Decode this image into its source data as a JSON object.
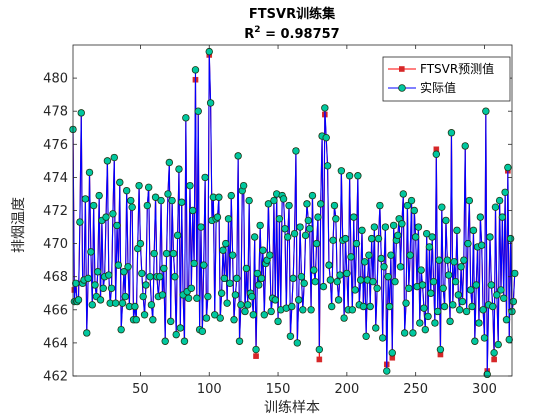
{
  "chart_data": {
    "type": "line",
    "title": "FTSVR训练集",
    "subtitle_prefix": "R",
    "subtitle_sup": "2",
    "subtitle_value": " = 0.98757",
    "xlabel": "训练样本",
    "ylabel": "排烟温度",
    "xlim": [
      1,
      320
    ],
    "ylim": [
      462,
      482
    ],
    "xticks": [
      50,
      100,
      150,
      200,
      250,
      300
    ],
    "yticks": [
      462,
      464,
      466,
      468,
      470,
      472,
      474,
      476,
      478,
      480
    ],
    "grid": false,
    "legend_position": "top-right",
    "series": [
      {
        "name": "FTSVR预测值",
        "color": "#ff0000",
        "marker": "square",
        "marker_fill": "#d62728",
        "values": [
          476.9,
          467.2,
          467.6,
          466.5,
          466.6,
          471.3,
          477.9,
          467.6,
          467.8,
          472.7,
          464.6,
          467.9,
          474.3,
          469.5,
          466.3,
          472.3,
          467.5,
          466.8,
          468.3,
          472.9,
          466.6,
          471.4,
          467.3,
          468.0,
          471.6,
          475.0,
          468.1,
          466.4,
          467.3,
          471.8,
          475.2,
          466.4,
          471.1,
          468.7,
          473.7,
          464.8,
          466.4,
          468.3,
          466.8,
          473.2,
          468.6,
          466.2,
          472.6,
          472.2,
          465.4,
          466.2,
          465.4,
          469.7,
          473.5,
          470.0,
          468.2,
          466.8,
          465.7,
          467.5,
          472.3,
          473.4,
          468.0,
          466.3,
          465.4,
          469.4,
          472.8,
          468.0,
          466.8,
          468.0,
          472.6,
          466.9,
          468.5,
          464.1,
          469.4,
          473.0,
          474.9,
          465.3,
          472.6,
          469.4,
          468.0,
          464.5,
          470.5,
          474.5,
          464.9,
          472.5,
          466.9,
          464.1,
          477.6,
          467.1,
          466.7,
          473.5,
          467.3,
          472.0,
          468.8,
          479.9,
          466.7,
          478.0,
          464.8,
          471.0,
          464.7,
          468.7,
          474.0,
          465.5,
          466.8,
          481.4,
          478.5,
          471.4,
          472.8,
          465.7,
          471.5,
          471.6,
          472.8,
          465.5,
          467.0,
          469.6,
          467.9,
          470.0,
          466.4,
          471.5,
          467.6,
          472.9,
          469.3,
          465.4,
          466.9,
          467.9,
          475.3,
          464.1,
          466.3,
          473.2,
          473.5,
          465.9,
          468.5,
          466.3,
          472.6,
          467.0,
          466.8,
          465.7,
          470.4,
          463.2,
          468.2,
          467.5,
          471.1,
          467.9,
          469.6,
          465.7,
          468.8,
          469.0,
          472.4,
          469.3,
          465.9,
          466.7,
          472.6,
          466.6,
          473.0,
          465.3,
          471.5,
          466.0,
          472.9,
          472.7,
          470.9,
          466.1,
          470.4,
          472.3,
          464.4,
          466.2,
          467.9,
          470.6,
          475.6,
          464.0,
          466.6,
          471.0,
          468.0,
          466.0,
          467.6,
          470.5,
          472.4,
          471.4,
          470.9,
          466.0,
          472.9,
          468.4,
          467.7,
          470.0,
          471.6,
          463.0,
          472.4,
          476.5,
          467.4,
          477.8,
          476.4,
          474.7,
          468.7,
          467.8,
          466.2,
          470.2,
          472.3,
          471.5,
          467.7,
          466.6,
          468.1,
          474.4,
          470.2,
          465.5,
          470.3,
          468.2,
          466.0,
          474.1,
          469.2,
          466.0,
          471.6,
          467.2,
          470.0,
          474.1,
          466.3,
          467.8,
          470.8,
          466.2,
          468.9,
          464.4,
          467.8,
          469.3,
          466.2,
          470.3,
          467.7,
          471.0,
          464.9,
          467.3,
          470.3,
          472.3,
          469.1,
          464.3,
          468.6,
          471.0,
          462.7,
          468.0,
          466.2,
          469.3,
          463.1,
          471.1,
          467.7,
          470.2,
          470.5,
          471.5,
          468.6,
          471.2,
          473.0,
          464.6,
          466.4,
          472.3,
          467.3,
          469.3,
          472.6,
          464.6,
          472.0,
          470.4,
          467.4,
          471.0,
          465.2,
          468.4,
          467.5,
          466.1,
          464.8,
          470.6,
          465.6,
          469.8,
          467.0,
          470.4,
          467.7,
          465.2,
          475.7,
          465.9,
          469.0,
          463.3,
          472.2,
          467.3,
          466.2,
          471.4,
          469.0,
          468.1,
          465.3,
          476.7,
          466.3,
          468.9,
          467.7,
          470.8,
          466.9,
          466.0,
          468.6,
          466.5,
          469.0,
          475.9,
          465.9,
          470.0,
          472.6,
          467.2,
          466.2,
          470.8,
          464.1,
          467.5,
          469.8,
          465.2,
          471.6,
          469.9,
          466.0,
          464.3,
          478.0,
          462.3,
          466.3,
          470.4,
          467.5,
          466.2,
          463.0,
          472.2,
          466.9,
          463.9,
          472.6,
          467.2,
          471.6,
          466.7,
          473.1,
          465.4,
          474.4,
          464.2,
          470.3,
          465.9,
          466.5,
          468.2
        ]
      },
      {
        "name": "实际值",
        "color": "#0000ff",
        "marker": "circle",
        "marker_fill": "#00c8a0",
        "values": [
          476.9,
          466.5,
          467.6,
          466.5,
          466.6,
          471.3,
          477.9,
          467.6,
          467.8,
          472.7,
          464.6,
          467.9,
          474.3,
          469.5,
          466.3,
          472.3,
          467.5,
          466.8,
          468.3,
          472.9,
          466.6,
          471.4,
          467.3,
          468.0,
          471.6,
          475.0,
          468.1,
          466.4,
          467.3,
          471.8,
          475.2,
          466.4,
          471.1,
          468.7,
          473.7,
          464.8,
          466.4,
          468.3,
          466.8,
          473.2,
          468.6,
          466.2,
          472.6,
          472.2,
          465.4,
          466.2,
          465.4,
          469.7,
          473.5,
          470.0,
          468.2,
          466.8,
          465.7,
          467.5,
          472.3,
          473.4,
          468.0,
          466.3,
          465.4,
          469.4,
          472.8,
          468.0,
          466.8,
          468.0,
          472.6,
          466.9,
          468.5,
          464.1,
          469.4,
          473.0,
          474.9,
          465.3,
          472.6,
          469.4,
          468.0,
          464.5,
          470.5,
          474.5,
          464.9,
          472.5,
          466.9,
          464.1,
          477.6,
          467.1,
          466.7,
          473.5,
          467.3,
          472.0,
          468.8,
          480.5,
          466.7,
          478.0,
          464.8,
          471.0,
          464.7,
          468.7,
          474.0,
          465.5,
          466.8,
          481.6,
          478.5,
          471.4,
          472.8,
          465.7,
          471.5,
          471.6,
          472.8,
          465.5,
          467.0,
          469.6,
          467.9,
          470.0,
          466.4,
          471.5,
          467.6,
          472.9,
          469.3,
          465.4,
          466.9,
          467.9,
          475.3,
          464.1,
          466.3,
          473.2,
          473.5,
          465.9,
          468.5,
          466.3,
          472.6,
          467.0,
          466.8,
          465.7,
          470.4,
          463.6,
          468.2,
          467.5,
          471.1,
          467.9,
          469.6,
          465.7,
          468.8,
          469.0,
          472.4,
          469.3,
          465.9,
          466.7,
          472.6,
          466.6,
          473.0,
          465.3,
          471.5,
          466.0,
          472.9,
          472.7,
          470.9,
          466.1,
          470.4,
          472.3,
          464.4,
          466.2,
          467.9,
          470.6,
          475.6,
          464.0,
          466.6,
          471.0,
          468.0,
          466.0,
          467.6,
          470.5,
          472.4,
          471.4,
          470.9,
          466.0,
          472.9,
          468.4,
          467.7,
          470.0,
          471.6,
          463.6,
          472.4,
          476.5,
          467.4,
          478.2,
          476.4,
          474.7,
          468.7,
          467.8,
          466.2,
          470.2,
          472.3,
          471.5,
          467.7,
          466.6,
          468.1,
          474.4,
          470.2,
          465.5,
          470.3,
          468.2,
          466.0,
          474.1,
          469.2,
          466.0,
          471.6,
          467.2,
          470.0,
          474.1,
          466.3,
          467.8,
          470.8,
          466.2,
          468.9,
          464.4,
          467.8,
          469.3,
          466.2,
          470.3,
          467.7,
          471.0,
          464.9,
          467.3,
          470.3,
          472.3,
          469.1,
          464.3,
          468.6,
          471.0,
          462.3,
          468.0,
          466.2,
          469.3,
          463.4,
          471.1,
          467.7,
          470.2,
          470.5,
          471.5,
          468.6,
          471.2,
          473.0,
          464.6,
          466.4,
          472.3,
          467.3,
          469.3,
          472.6,
          464.6,
          472.0,
          470.4,
          467.4,
          471.0,
          465.2,
          468.4,
          467.5,
          466.1,
          464.8,
          470.6,
          465.6,
          469.8,
          467.0,
          470.4,
          467.7,
          465.2,
          475.4,
          465.9,
          469.0,
          463.6,
          472.2,
          467.3,
          466.2,
          471.4,
          469.0,
          468.1,
          465.3,
          476.7,
          466.3,
          468.9,
          467.7,
          470.8,
          466.9,
          466.0,
          468.6,
          466.5,
          469.0,
          475.9,
          465.9,
          470.0,
          472.6,
          467.2,
          466.2,
          470.8,
          464.1,
          467.5,
          469.8,
          465.2,
          471.6,
          469.9,
          466.0,
          464.3,
          478.0,
          462.1,
          466.3,
          470.4,
          467.5,
          466.2,
          463.4,
          472.2,
          466.9,
          463.9,
          472.6,
          467.2,
          471.6,
          466.7,
          473.1,
          465.4,
          474.6,
          464.2,
          470.3,
          465.9,
          466.5,
          468.2
        ]
      }
    ]
  }
}
